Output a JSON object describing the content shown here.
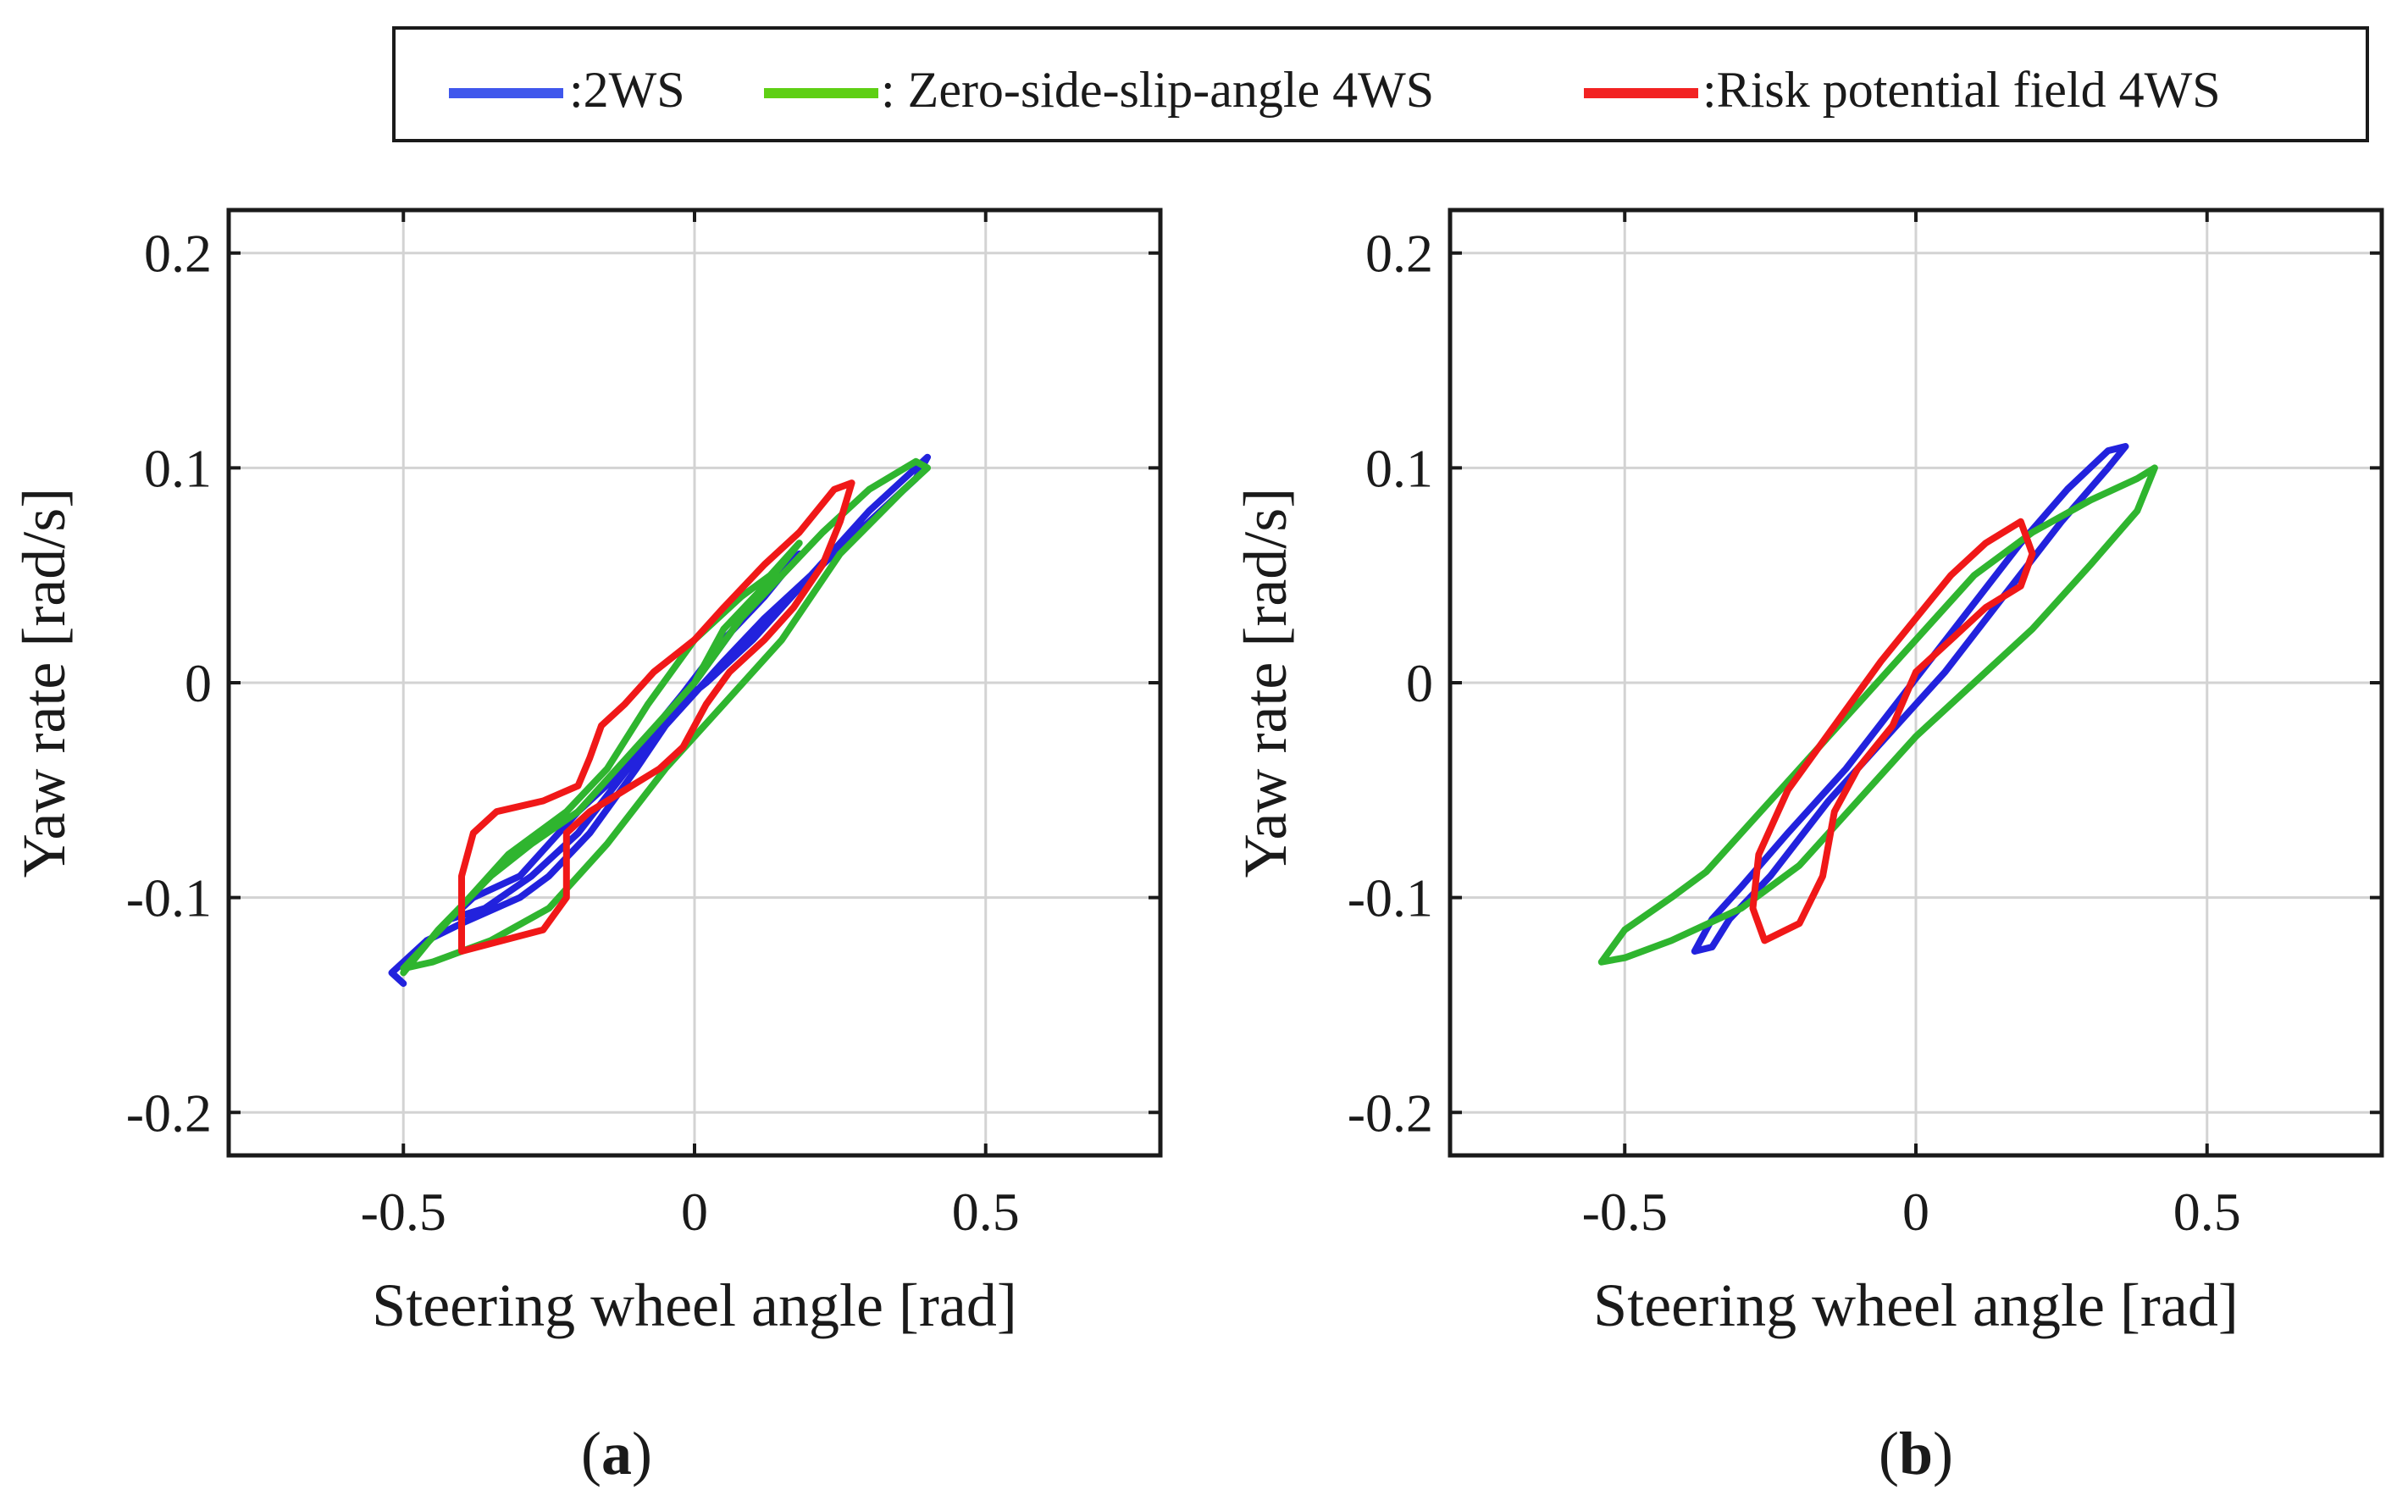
{
  "legend": {
    "items": [
      {
        "label": ":2WS",
        "color": "#3f57ec"
      },
      {
        "label": ": Zero-side-slip-angle 4WS",
        "color": "#5ecf14"
      },
      {
        "label": ":Risk potential field 4WS",
        "color": "#f22222"
      }
    ]
  },
  "colors": {
    "2WS": "#2222dd",
    "zero_side_slip_4WS": "#2fb52f",
    "risk_potential_4WS": "#f01818",
    "grid": "#d3d3d3",
    "axes": "#1a1a1a"
  },
  "panels": [
    {
      "label_open": "(",
      "label_letter": "a",
      "label_close": ")"
    },
    {
      "label_open": "(",
      "label_letter": "b",
      "label_close": ")"
    }
  ],
  "chart_data": [
    {
      "type": "line",
      "panel": "a",
      "xlabel": "Steering wheel angle [rad]",
      "ylabel": "Yaw rate [rad/s]",
      "xlim": [
        -0.8,
        0.8
      ],
      "ylim": [
        -0.22,
        0.22
      ],
      "xticks": [
        -0.5,
        0,
        0.5
      ],
      "xtick_labels": [
        "-0.5",
        "0",
        "0.5"
      ],
      "yticks": [
        -0.2,
        -0.1,
        0,
        0.1,
        0.2
      ],
      "ytick_labels": [
        "-0.2",
        "-0.1",
        "0",
        "0.1",
        "0.2"
      ],
      "grid": true,
      "series": [
        {
          "name": ":2WS",
          "color_key": "2WS",
          "points": [
            [
              -0.5,
              -0.14
            ],
            [
              -0.52,
              -0.135
            ],
            [
              -0.46,
              -0.12
            ],
            [
              -0.4,
              -0.112
            ],
            [
              -0.3,
              -0.1
            ],
            [
              -0.25,
              -0.09
            ],
            [
              -0.18,
              -0.07
            ],
            [
              -0.1,
              -0.04
            ],
            [
              -0.05,
              -0.02
            ],
            [
              0.0,
              -0.005
            ],
            [
              0.05,
              0.01
            ],
            [
              0.12,
              0.03
            ],
            [
              0.2,
              0.05
            ],
            [
              0.3,
              0.08
            ],
            [
              0.38,
              0.1
            ],
            [
              0.4,
              0.105
            ],
            [
              0.38,
              0.095
            ],
            [
              0.3,
              0.075
            ],
            [
              0.2,
              0.05
            ],
            [
              0.1,
              0.02
            ],
            [
              0.02,
              0.0
            ],
            [
              -0.05,
              -0.015
            ],
            [
              -0.12,
              -0.04
            ],
            [
              -0.2,
              -0.06
            ],
            [
              -0.3,
              -0.09
            ],
            [
              -0.38,
              -0.1
            ],
            [
              -0.42,
              -0.11
            ],
            [
              -0.36,
              -0.105
            ],
            [
              -0.28,
              -0.09
            ],
            [
              -0.2,
              -0.07
            ],
            [
              -0.1,
              -0.035
            ],
            [
              0.0,
              0.0
            ],
            [
              0.08,
              0.03
            ],
            [
              0.14,
              0.05
            ],
            [
              0.18,
              0.06
            ],
            [
              0.12,
              0.04
            ],
            [
              0.05,
              0.02
            ],
            [
              -0.02,
              -0.005
            ],
            [
              -0.05,
              -0.015
            ]
          ]
        },
        {
          "name": ": Zero-side-slip-angle 4WS",
          "color_key": "zero_side_slip_4WS",
          "points": [
            [
              -0.5,
              -0.135
            ],
            [
              -0.44,
              -0.115
            ],
            [
              -0.35,
              -0.09
            ],
            [
              -0.28,
              -0.075
            ],
            [
              -0.2,
              -0.06
            ],
            [
              -0.1,
              -0.03
            ],
            [
              0.0,
              0.0
            ],
            [
              0.08,
              0.03
            ],
            [
              0.15,
              0.05
            ],
            [
              0.22,
              0.07
            ],
            [
              0.3,
              0.09
            ],
            [
              0.38,
              0.103
            ],
            [
              0.4,
              0.1
            ],
            [
              0.36,
              0.09
            ],
            [
              0.25,
              0.06
            ],
            [
              0.15,
              0.02
            ],
            [
              0.05,
              -0.01
            ],
            [
              -0.05,
              -0.04
            ],
            [
              -0.15,
              -0.075
            ],
            [
              -0.25,
              -0.105
            ],
            [
              -0.35,
              -0.12
            ],
            [
              -0.45,
              -0.13
            ],
            [
              -0.5,
              -0.133
            ],
            [
              -0.42,
              -0.11
            ],
            [
              -0.32,
              -0.08
            ],
            [
              -0.26,
              -0.068
            ],
            [
              -0.22,
              -0.06
            ],
            [
              -0.15,
              -0.04
            ],
            [
              -0.08,
              -0.01
            ],
            [
              0.0,
              0.02
            ],
            [
              0.08,
              0.04
            ],
            [
              0.13,
              0.05
            ],
            [
              0.18,
              0.065
            ],
            [
              0.12,
              0.045
            ],
            [
              0.05,
              0.025
            ],
            [
              0.0,
              0.0
            ]
          ]
        },
        {
          "name": ":Risk potential field 4WS",
          "color_key": "risk_potential_4WS",
          "points": [
            [
              -0.4,
              -0.125
            ],
            [
              -0.4,
              -0.09
            ],
            [
              -0.38,
              -0.07
            ],
            [
              -0.34,
              -0.06
            ],
            [
              -0.26,
              -0.055
            ],
            [
              -0.2,
              -0.048
            ],
            [
              -0.18,
              -0.035
            ],
            [
              -0.16,
              -0.02
            ],
            [
              -0.12,
              -0.01
            ],
            [
              -0.07,
              0.005
            ],
            [
              0.0,
              0.02
            ],
            [
              0.05,
              0.035
            ],
            [
              0.12,
              0.055
            ],
            [
              0.18,
              0.07
            ],
            [
              0.24,
              0.09
            ],
            [
              0.27,
              0.093
            ],
            [
              0.25,
              0.075
            ],
            [
              0.22,
              0.055
            ],
            [
              0.17,
              0.035
            ],
            [
              0.12,
              0.02
            ],
            [
              0.06,
              0.005
            ],
            [
              0.02,
              -0.01
            ],
            [
              -0.02,
              -0.03
            ],
            [
              -0.06,
              -0.04
            ],
            [
              -0.12,
              -0.05
            ],
            [
              -0.18,
              -0.06
            ],
            [
              -0.22,
              -0.07
            ],
            [
              -0.22,
              -0.1
            ],
            [
              -0.26,
              -0.115
            ],
            [
              -0.33,
              -0.12
            ],
            [
              -0.4,
              -0.125
            ]
          ]
        }
      ]
    },
    {
      "type": "line",
      "panel": "b",
      "xlabel": "Steering wheel angle [rad]",
      "ylabel": "Yaw rate [rad/s]",
      "xlim": [
        -0.8,
        0.8
      ],
      "ylim": [
        -0.22,
        0.22
      ],
      "xticks": [
        -0.5,
        0,
        0.5
      ],
      "xtick_labels": [
        "-0.5",
        "0",
        "0.5"
      ],
      "yticks": [
        -0.2,
        -0.1,
        0,
        0.1,
        0.2
      ],
      "ytick_labels": [
        "-0.2",
        "-0.1",
        "0",
        "0.1",
        "0.2"
      ],
      "grid": true,
      "series": [
        {
          "name": ":2WS",
          "color_key": "2WS",
          "points": [
            [
              -0.38,
              -0.125
            ],
            [
              -0.35,
              -0.11
            ],
            [
              -0.3,
              -0.095
            ],
            [
              -0.22,
              -0.07
            ],
            [
              -0.12,
              -0.04
            ],
            [
              -0.02,
              -0.005
            ],
            [
              0.08,
              0.03
            ],
            [
              0.18,
              0.065
            ],
            [
              0.26,
              0.09
            ],
            [
              0.33,
              0.108
            ],
            [
              0.36,
              0.11
            ],
            [
              0.33,
              0.1
            ],
            [
              0.25,
              0.075
            ],
            [
              0.15,
              0.04
            ],
            [
              0.05,
              0.005
            ],
            [
              -0.05,
              -0.025
            ],
            [
              -0.15,
              -0.055
            ],
            [
              -0.25,
              -0.09
            ],
            [
              -0.32,
              -0.11
            ],
            [
              -0.35,
              -0.123
            ],
            [
              -0.38,
              -0.125
            ]
          ]
        },
        {
          "name": ": Zero-side-slip-angle 4WS",
          "color_key": "zero_side_slip_4WS",
          "points": [
            [
              -0.54,
              -0.13
            ],
            [
              -0.5,
              -0.115
            ],
            [
              -0.42,
              -0.1
            ],
            [
              -0.36,
              -0.088
            ],
            [
              -0.3,
              -0.07
            ],
            [
              -0.2,
              -0.04
            ],
            [
              -0.1,
              -0.01
            ],
            [
              0.0,
              0.02
            ],
            [
              0.1,
              0.05
            ],
            [
              0.2,
              0.07
            ],
            [
              0.3,
              0.085
            ],
            [
              0.38,
              0.095
            ],
            [
              0.41,
              0.1
            ],
            [
              0.38,
              0.08
            ],
            [
              0.3,
              0.055
            ],
            [
              0.2,
              0.025
            ],
            [
              0.1,
              0.0
            ],
            [
              0.0,
              -0.025
            ],
            [
              -0.1,
              -0.055
            ],
            [
              -0.2,
              -0.085
            ],
            [
              -0.3,
              -0.105
            ],
            [
              -0.42,
              -0.12
            ],
            [
              -0.5,
              -0.128
            ],
            [
              -0.54,
              -0.13
            ]
          ]
        },
        {
          "name": ":Risk potential field 4WS",
          "color_key": "risk_potential_4WS",
          "points": [
            [
              -0.26,
              -0.12
            ],
            [
              -0.28,
              -0.105
            ],
            [
              -0.27,
              -0.08
            ],
            [
              -0.22,
              -0.05
            ],
            [
              -0.14,
              -0.02
            ],
            [
              -0.06,
              0.01
            ],
            [
              0.0,
              0.03
            ],
            [
              0.06,
              0.05
            ],
            [
              0.12,
              0.065
            ],
            [
              0.18,
              0.075
            ],
            [
              0.2,
              0.06
            ],
            [
              0.18,
              0.045
            ],
            [
              0.12,
              0.035
            ],
            [
              0.06,
              0.02
            ],
            [
              0.0,
              0.005
            ],
            [
              -0.04,
              -0.02
            ],
            [
              -0.1,
              -0.04
            ],
            [
              -0.14,
              -0.06
            ],
            [
              -0.16,
              -0.09
            ],
            [
              -0.2,
              -0.112
            ],
            [
              -0.26,
              -0.12
            ]
          ]
        }
      ]
    }
  ]
}
